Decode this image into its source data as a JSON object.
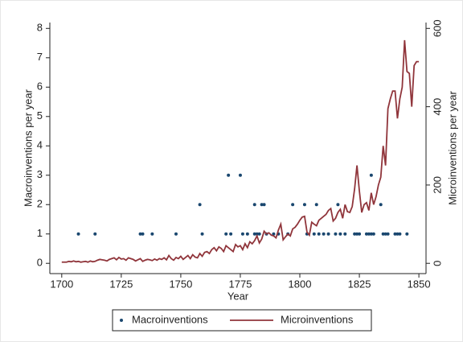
{
  "chart_data": {
    "type": "combo",
    "xlabel": "Year",
    "ylabel": "Macroinventions per year",
    "y2label": "Microinventions per year",
    "xlim": [
      1695,
      1853
    ],
    "xticks": [
      1700,
      1725,
      1750,
      1775,
      1800,
      1825,
      1850
    ],
    "ylim": [
      -0.35,
      8.2
    ],
    "yticks": [
      0,
      1,
      2,
      3,
      4,
      5,
      6,
      7,
      8
    ],
    "y2lim": [
      -26.25,
      615
    ],
    "y2ticks": [
      0,
      200,
      400,
      600
    ],
    "legend": "bottom",
    "series": [
      {
        "name": "Macroinventions",
        "type": "scatter",
        "color": "#1a476f",
        "x": [
          1707,
          1714,
          1733,
          1734,
          1738,
          1748,
          1758,
          1759,
          1769,
          1770,
          1771,
          1775,
          1776,
          1778,
          1781,
          1781,
          1782,
          1783,
          1784,
          1785,
          1786,
          1789,
          1791,
          1795,
          1797,
          1802,
          1803,
          1806,
          1807,
          1808,
          1810,
          1812,
          1815,
          1816,
          1817,
          1819,
          1823,
          1824,
          1825,
          1828,
          1829,
          1830,
          1830,
          1831,
          1834,
          1835,
          1836,
          1837,
          1840,
          1841,
          1842,
          1845
        ],
        "values": [
          1,
          1,
          1,
          1,
          1,
          1,
          2,
          1,
          1,
          3,
          1,
          3,
          1,
          1,
          2,
          1,
          1,
          1,
          2,
          2,
          1,
          1,
          1,
          1,
          2,
          2,
          1,
          1,
          2,
          1,
          1,
          1,
          1,
          2,
          1,
          1,
          1,
          1,
          1,
          1,
          1,
          3,
          1,
          1,
          2,
          1,
          1,
          1,
          1,
          1,
          1,
          1
        ]
      },
      {
        "name": "Microinventions",
        "type": "line",
        "axis": "y2",
        "color": "#90353b",
        "x": [
          1700,
          1701,
          1702,
          1703,
          1704,
          1705,
          1706,
          1707,
          1708,
          1709,
          1710,
          1711,
          1712,
          1713,
          1714,
          1715,
          1716,
          1717,
          1718,
          1719,
          1720,
          1721,
          1722,
          1723,
          1724,
          1725,
          1726,
          1727,
          1728,
          1729,
          1730,
          1731,
          1732,
          1733,
          1734,
          1735,
          1736,
          1737,
          1738,
          1739,
          1740,
          1741,
          1742,
          1743,
          1744,
          1745,
          1746,
          1747,
          1748,
          1749,
          1750,
          1751,
          1752,
          1753,
          1754,
          1755,
          1756,
          1757,
          1758,
          1759,
          1760,
          1761,
          1762,
          1763,
          1764,
          1765,
          1766,
          1767,
          1768,
          1769,
          1770,
          1771,
          1772,
          1773,
          1774,
          1775,
          1776,
          1777,
          1778,
          1779,
          1780,
          1781,
          1782,
          1783,
          1784,
          1785,
          1786,
          1787,
          1788,
          1789,
          1790,
          1791,
          1792,
          1793,
          1794,
          1795,
          1796,
          1797,
          1798,
          1799,
          1800,
          1801,
          1802,
          1803,
          1804,
          1805,
          1806,
          1807,
          1808,
          1809,
          1810,
          1811,
          1812,
          1813,
          1814,
          1815,
          1816,
          1817,
          1818,
          1819,
          1820,
          1821,
          1822,
          1823,
          1824,
          1825,
          1826,
          1827,
          1828,
          1829,
          1830,
          1831,
          1832,
          1833,
          1834,
          1835,
          1836,
          1837,
          1838,
          1839,
          1840,
          1841,
          1842,
          1843,
          1844,
          1845,
          1846,
          1847,
          1848,
          1849,
          1850
        ],
        "values": [
          3,
          3,
          3,
          5,
          4,
          6,
          4,
          5,
          3,
          4,
          5,
          3,
          6,
          4,
          5,
          8,
          10,
          9,
          8,
          6,
          10,
          12,
          14,
          9,
          15,
          11,
          12,
          8,
          14,
          12,
          10,
          6,
          9,
          12,
          5,
          8,
          10,
          9,
          7,
          11,
          8,
          12,
          10,
          14,
          9,
          20,
          12,
          8,
          15,
          12,
          18,
          10,
          15,
          20,
          12,
          22,
          16,
          14,
          25,
          18,
          28,
          30,
          25,
          35,
          40,
          32,
          42,
          38,
          30,
          45,
          40,
          35,
          30,
          48,
          42,
          45,
          35,
          50,
          40,
          55,
          50,
          58,
          70,
          52,
          62,
          82,
          75,
          78,
          72,
          70,
          65,
          85,
          100,
          60,
          68,
          75,
          70,
          88,
          92,
          100,
          110,
          118,
          120,
          80,
          72,
          105,
          100,
          96,
          110,
          115,
          120,
          125,
          135,
          140,
          108,
          115,
          130,
          138,
          115,
          150,
          132,
          130,
          145,
          190,
          250,
          185,
          130,
          150,
          155,
          135,
          180,
          150,
          170,
          200,
          220,
          300,
          250,
          395,
          420,
          440,
          440,
          370,
          420,
          450,
          570,
          490,
          485,
          400,
          505,
          515,
          515
        ]
      }
    ]
  }
}
